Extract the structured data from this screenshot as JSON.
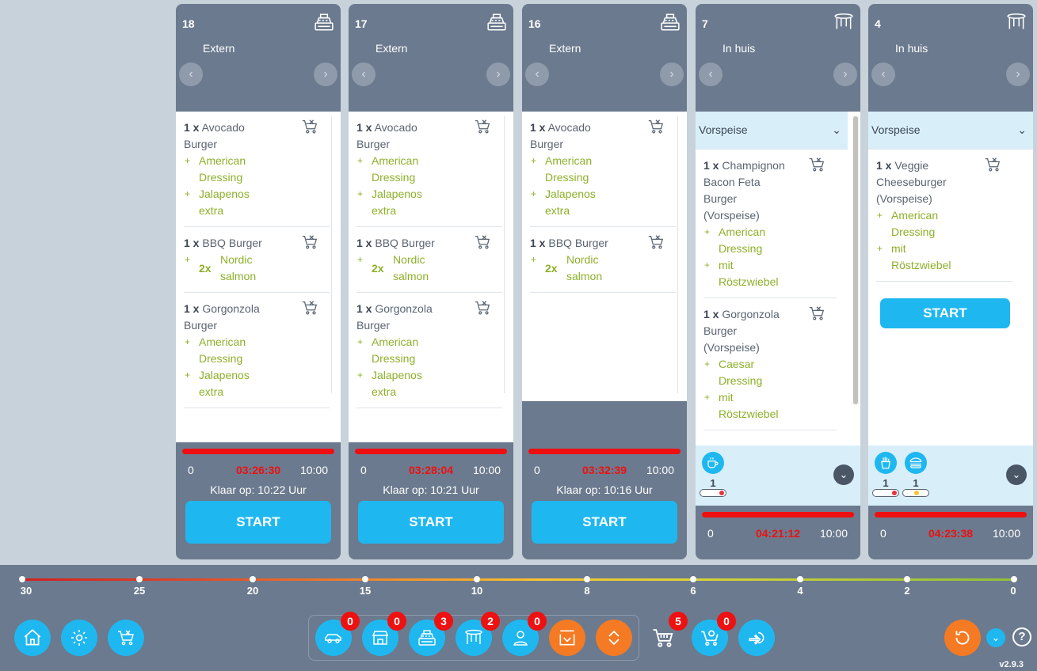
{
  "orders": [
    {
      "number": "18",
      "type": "Extern",
      "table_icon": "cash-register-icon",
      "items": [
        {
          "qty": "1 x",
          "name_lines": [
            "Avocado",
            "Burger"
          ],
          "mods": [
            {
              "q": "",
              "lines": [
                "American",
                "Dressing"
              ]
            },
            {
              "q": "",
              "lines": [
                "Jalapenos",
                "extra"
              ]
            }
          ]
        },
        {
          "qty": "1 x",
          "name_lines": [
            "BBQ Burger"
          ],
          "mods": [
            {
              "q": "2x",
              "lines": [
                "Nordic",
                "salmon"
              ]
            }
          ]
        },
        {
          "qty": "1 x",
          "name_lines": [
            "Gorgonzola",
            "Burger"
          ],
          "mods": [
            {
              "q": "",
              "lines": [
                "American",
                "Dressing"
              ]
            },
            {
              "q": "",
              "lines": [
                "Jalapenos",
                "extra"
              ]
            }
          ]
        }
      ],
      "time": "03:26:30",
      "start": "0",
      "end": "10:00",
      "ready": "Klaar op: 10:22 Uur",
      "button": "START"
    },
    {
      "number": "17",
      "type": "Extern",
      "table_icon": "cash-register-icon",
      "items": [
        {
          "qty": "1 x",
          "name_lines": [
            "Avocado",
            "Burger"
          ],
          "mods": [
            {
              "q": "",
              "lines": [
                "American",
                "Dressing"
              ]
            },
            {
              "q": "",
              "lines": [
                "Jalapenos",
                "extra"
              ]
            }
          ]
        },
        {
          "qty": "1 x",
          "name_lines": [
            "BBQ Burger"
          ],
          "mods": [
            {
              "q": "2x",
              "lines": [
                "Nordic",
                "salmon"
              ]
            }
          ]
        },
        {
          "qty": "1 x",
          "name_lines": [
            "Gorgonzola",
            "Burger"
          ],
          "mods": [
            {
              "q": "",
              "lines": [
                "American",
                "Dressing"
              ]
            },
            {
              "q": "",
              "lines": [
                "Jalapenos",
                "extra"
              ]
            }
          ]
        }
      ],
      "time": "03:28:04",
      "start": "0",
      "end": "10:00",
      "ready": "Klaar op: 10:21 Uur",
      "button": "START"
    },
    {
      "number": "16",
      "type": "Extern",
      "table_icon": "cash-register-icon",
      "items": [
        {
          "qty": "1 x",
          "name_lines": [
            "Avocado",
            "Burger"
          ],
          "mods": [
            {
              "q": "",
              "lines": [
                "American",
                "Dressing"
              ]
            },
            {
              "q": "",
              "lines": [
                "Jalapenos",
                "extra"
              ]
            }
          ]
        },
        {
          "qty": "1 x",
          "name_lines": [
            "BBQ Burger"
          ],
          "mods": [
            {
              "q": "2x",
              "lines": [
                "Nordic",
                "salmon"
              ]
            }
          ]
        }
      ],
      "time": "03:32:39",
      "start": "0",
      "end": "10:00",
      "ready": "Klaar op: 10:16 Uur",
      "button": "START"
    },
    {
      "number": "7",
      "type": "In huis",
      "table_icon": "table-icon",
      "course": "Vorspeise",
      "items": [
        {
          "qty": "1 x",
          "name_lines": [
            "Champignon",
            "Bacon Feta",
            "Burger",
            "(Vorspeise)"
          ],
          "mods": [
            {
              "q": "",
              "lines": [
                "American",
                "Dressing"
              ]
            },
            {
              "q": "",
              "lines": [
                "mit",
                "Röstzwiebel"
              ]
            }
          ]
        },
        {
          "qty": "1 x",
          "name_lines": [
            "Gorgonzola",
            "Burger",
            "(Vorspeise)"
          ],
          "mods": [
            {
              "q": "",
              "lines": [
                "Caesar",
                "Dressing"
              ]
            },
            {
              "q": "",
              "lines": [
                "mit",
                "Röstzwiebel"
              ]
            }
          ]
        }
      ],
      "categories": [
        {
          "icon": "coffee-icon",
          "count": "1",
          "dot": "#e8323c"
        }
      ],
      "time": "04:21:12",
      "start": "0",
      "end": "10:00"
    },
    {
      "number": "4",
      "type": "In huis",
      "table_icon": "table-icon",
      "course": "Vorspeise",
      "items": [
        {
          "qty": "1 x",
          "name_lines": [
            "Veggie",
            "Cheeseburger",
            "(Vorspeise)"
          ],
          "mods": [
            {
              "q": "",
              "lines": [
                "American",
                "Dressing"
              ]
            },
            {
              "q": "",
              "lines": [
                "mit",
                "Röstzwiebel"
              ]
            }
          ]
        }
      ],
      "button": "START",
      "categories": [
        {
          "icon": "fries-icon",
          "count": "1",
          "dot": "#e8323c"
        },
        {
          "icon": "burger-icon",
          "count": "1",
          "dot": "#f5c531"
        }
      ],
      "time": "04:23:38",
      "start": "0",
      "end": "10:00"
    }
  ],
  "timeline": {
    "labels": [
      "30",
      "25",
      "20",
      "15",
      "10",
      "8",
      "6",
      "4",
      "2",
      "0"
    ]
  },
  "toolbar": {
    "left": [
      "home-icon",
      "settings-icon",
      "cart-cancel-icon"
    ],
    "filters": [
      {
        "icon": "car-icon",
        "count": "0"
      },
      {
        "icon": "store-icon",
        "count": "0"
      },
      {
        "icon": "cash-register-icon",
        "count": "3"
      },
      {
        "icon": "table-icon",
        "count": "2"
      },
      {
        "icon": "person-icon",
        "count": "0"
      }
    ],
    "cart_count": "5",
    "cart_sync_count": "0"
  },
  "version": "v2.9.3",
  "colors": {
    "accent": "#1fb7ef",
    "orange": "#f47a23",
    "card": "#6b7a8e",
    "alert": "#ee1111",
    "modifier": "#8db02a"
  }
}
